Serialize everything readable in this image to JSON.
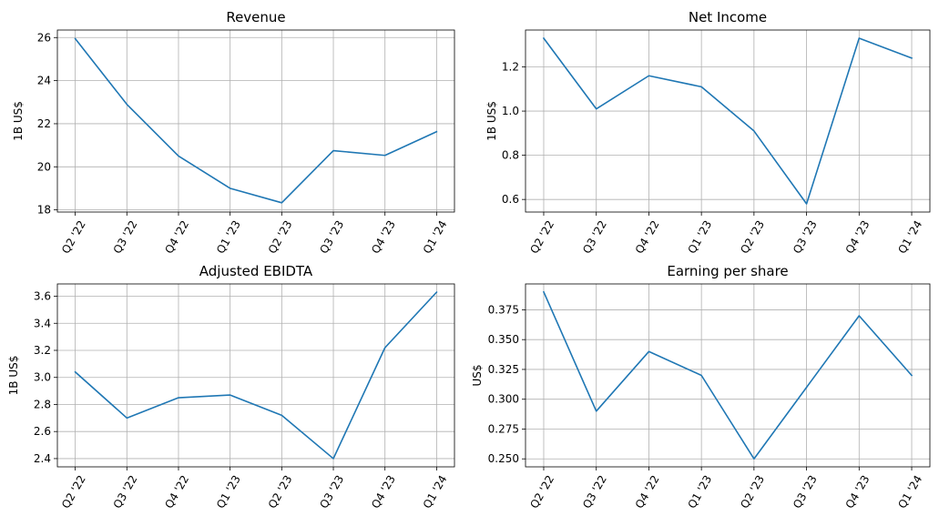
{
  "chart_data": [
    {
      "type": "line",
      "title": "Revenue",
      "ylabel": "1B US$",
      "xlabel": "",
      "categories": [
        "Q2 '22",
        "Q3 '22",
        "Q4 '22",
        "Q1 '23",
        "Q2 '23",
        "Q3 '23",
        "Q4 '23",
        "Q1 '24"
      ],
      "values": [
        25.95,
        22.9,
        20.5,
        19.0,
        18.33,
        20.75,
        20.53,
        21.63
      ],
      "ylim": [
        17.9,
        26.35
      ],
      "yticks": [
        18,
        20,
        22,
        24,
        26
      ],
      "ytick_labels": [
        "18",
        "20",
        "22",
        "24",
        "26"
      ],
      "grid": true,
      "color": "#1f77b4"
    },
    {
      "type": "line",
      "title": "Net Income",
      "ylabel": "1B US$",
      "xlabel": "",
      "categories": [
        "Q2 '22",
        "Q3 '22",
        "Q4 '22",
        "Q1 '23",
        "Q2 '23",
        "Q3 '23",
        "Q4 '23",
        "Q1 '24"
      ],
      "values": [
        1.33,
        1.01,
        1.16,
        1.11,
        0.91,
        0.58,
        1.33,
        1.24
      ],
      "ylim": [
        0.543,
        1.367
      ],
      "yticks": [
        0.6,
        0.8,
        1.0,
        1.2
      ],
      "ytick_labels": [
        "0.6",
        "0.8",
        "1.0",
        "1.2"
      ],
      "grid": true,
      "color": "#1f77b4"
    },
    {
      "type": "line",
      "title": "Adjusted EBIDTA",
      "ylabel": "1B US$",
      "xlabel": "",
      "categories": [
        "Q2 '22",
        "Q3 '22",
        "Q4 '22",
        "Q1 '23",
        "Q2 '23",
        "Q3 '23",
        "Q4 '23",
        "Q1 '24"
      ],
      "values": [
        3.04,
        2.7,
        2.85,
        2.87,
        2.72,
        2.4,
        3.22,
        3.63
      ],
      "ylim": [
        2.339,
        3.691
      ],
      "yticks": [
        2.4,
        2.6,
        2.8,
        3.0,
        3.2,
        3.4,
        3.6
      ],
      "ytick_labels": [
        "2.4",
        "2.6",
        "2.8",
        "3.0",
        "3.2",
        "3.4",
        "3.6"
      ],
      "grid": true,
      "color": "#1f77b4"
    },
    {
      "type": "line",
      "title": "Earning per share",
      "ylabel": "US$",
      "xlabel": "",
      "categories": [
        "Q2 '22",
        "Q3 '22",
        "Q4 '22",
        "Q1 '23",
        "Q2 '23",
        "Q3 '23",
        "Q4 '23",
        "Q1 '24"
      ],
      "values": [
        0.39,
        0.29,
        0.34,
        0.32,
        0.25,
        0.31,
        0.37,
        0.32
      ],
      "ylim": [
        0.2433,
        0.3967
      ],
      "yticks": [
        0.25,
        0.275,
        0.3,
        0.325,
        0.35,
        0.375
      ],
      "ytick_labels": [
        "0.250",
        "0.275",
        "0.300",
        "0.325",
        "0.350",
        "0.375"
      ],
      "grid": true,
      "color": "#1f77b4"
    }
  ]
}
